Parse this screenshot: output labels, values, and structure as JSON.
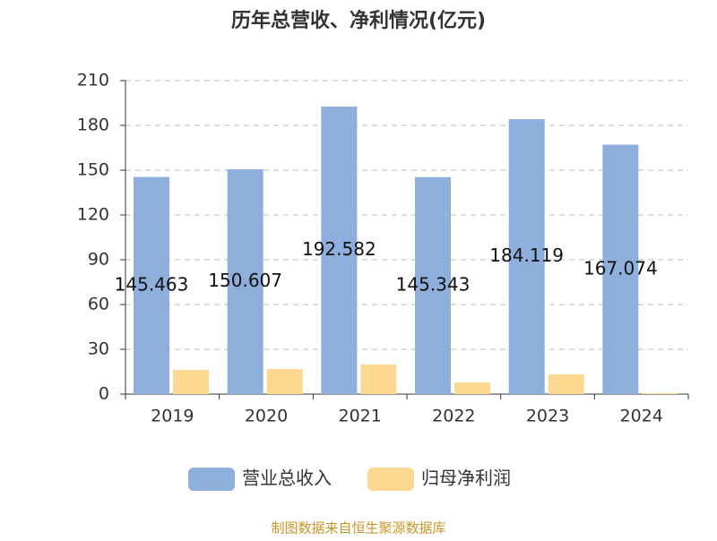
{
  "chart_data": {
    "type": "bar",
    "title": "历年总营收、净利情况(亿元)",
    "categories": [
      "2019",
      "2020",
      "2021",
      "2022",
      "2023",
      "2024"
    ],
    "series": [
      {
        "name": "营业总收入",
        "color": "#8eaedb",
        "values": [
          145.463,
          150.607,
          192.582,
          145.343,
          184.119,
          167.074
        ]
      },
      {
        "name": "归母净利润",
        "color": "#fdd891",
        "values": [
          16.2,
          16.8,
          19.8,
          7.8,
          13.2,
          0.6
        ]
      }
    ],
    "ylim": [
      0,
      210
    ],
    "yticks": [
      0,
      30,
      60,
      90,
      120,
      150,
      180,
      210
    ],
    "grid": true,
    "source": "制图数据来自恒生聚源数据库"
  }
}
